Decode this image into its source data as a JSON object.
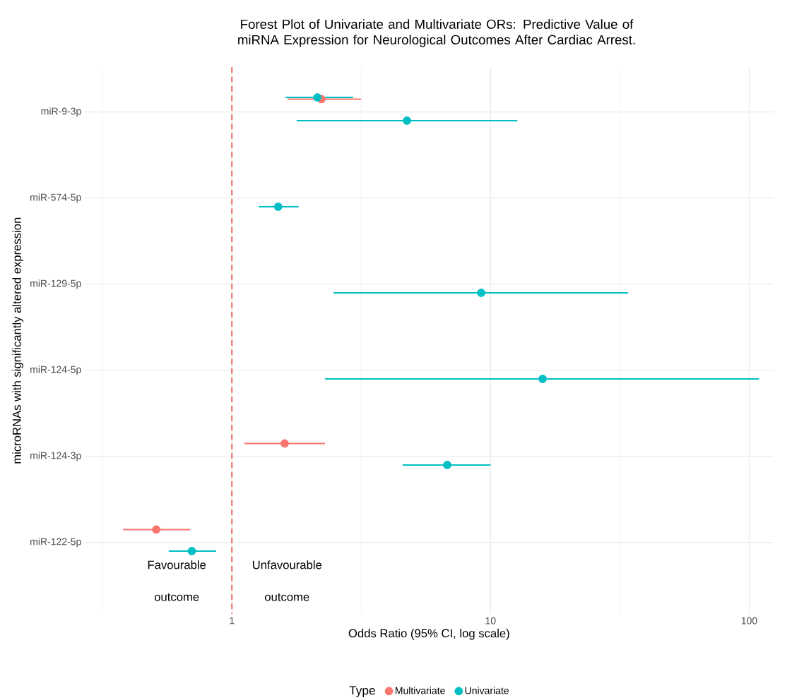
{
  "chart_data": {
    "type": "scatter",
    "orientation": "horizontal",
    "title": "Forest Plot of Univariate and Multivariate ORs: Predictive Value of miRNA Expression for Neurological Outcomes After Cardiac Arrest.",
    "xlabel": "Odds Ratio (95% CI, log scale)",
    "ylabel": "microRNAs with significantly altered expression",
    "legend_title": "Type",
    "categories": [
      "miR-9-3p",
      "miR-574-5p",
      "miR-129-5p",
      "miR-124-5p",
      "miR-124-3p",
      "miR-122-5p"
    ],
    "series": [
      {
        "name": "Multivariate",
        "color": "#f8766d",
        "values": [
          2.22,
          null,
          null,
          null,
          1.6,
          0.51
        ],
        "errors": [
          [
            1.64,
            3.16
          ],
          null,
          null,
          null,
          [
            1.12,
            2.29
          ],
          [
            0.38,
            0.69
          ]
        ]
      },
      {
        "name": "Univariate",
        "color": "#00bfc4",
        "values": [
          4.75,
          1.51,
          9.2,
          15.9,
          6.8,
          0.7
        ],
        "errors": [
          [
            1.78,
            12.7
          ],
          [
            1.27,
            1.81
          ],
          [
            2.47,
            34
          ],
          [
            2.29,
            109
          ],
          [
            4.57,
            10
          ],
          [
            0.57,
            0.87
          ]
        ]
      },
      {
        "color": "#00bfc4",
        "values": [
          2.14,
          null,
          null,
          null,
          null,
          null
        ],
        "errors": [
          [
            1.61,
            2.94
          ],
          null,
          null,
          null,
          null,
          null
        ]
      }
    ],
    "xlim": [
      0.27,
      124
    ],
    "xticks": [
      1,
      10,
      100
    ],
    "log": "x",
    "grid": true,
    "marker": "circle",
    "legend": "bottom",
    "ref_lines": [
      {
        "axis": "x",
        "value": 1,
        "color": "#e8352a",
        "line_style": "dashed"
      }
    ],
    "annotations": [
      "Favourable outcome",
      "Unfavourable outcome"
    ]
  }
}
